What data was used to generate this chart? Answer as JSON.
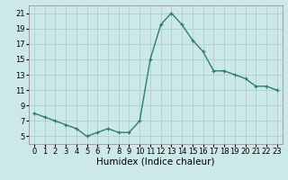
{
  "x": [
    0,
    1,
    2,
    3,
    4,
    5,
    6,
    7,
    8,
    9,
    10,
    11,
    12,
    13,
    14,
    15,
    16,
    17,
    18,
    19,
    20,
    21,
    22,
    23
  ],
  "y": [
    8,
    7.5,
    7,
    6.5,
    6,
    5,
    5.5,
    6,
    5.5,
    5.5,
    7,
    15,
    19.5,
    21,
    19.5,
    17.5,
    16,
    13.5,
    13.5,
    13,
    12.5,
    11.5,
    11.5,
    11
  ],
  "line_color": "#2e7d6e",
  "marker": "+",
  "bg_color": "#cce8e8",
  "grid_color": "#aed0d0",
  "xlabel": "Humidex (Indice chaleur)",
  "ylim": [
    4,
    22
  ],
  "xlim": [
    -0.5,
    23.5
  ],
  "yticks": [
    5,
    7,
    9,
    11,
    13,
    15,
    17,
    19,
    21
  ],
  "xticks": [
    0,
    1,
    2,
    3,
    4,
    5,
    6,
    7,
    8,
    9,
    10,
    11,
    12,
    13,
    14,
    15,
    16,
    17,
    18,
    19,
    20,
    21,
    22,
    23
  ],
  "tick_fontsize": 6,
  "xlabel_fontsize": 7.5,
  "linewidth": 1.0,
  "markersize": 3.5,
  "markeredgewidth": 0.9
}
